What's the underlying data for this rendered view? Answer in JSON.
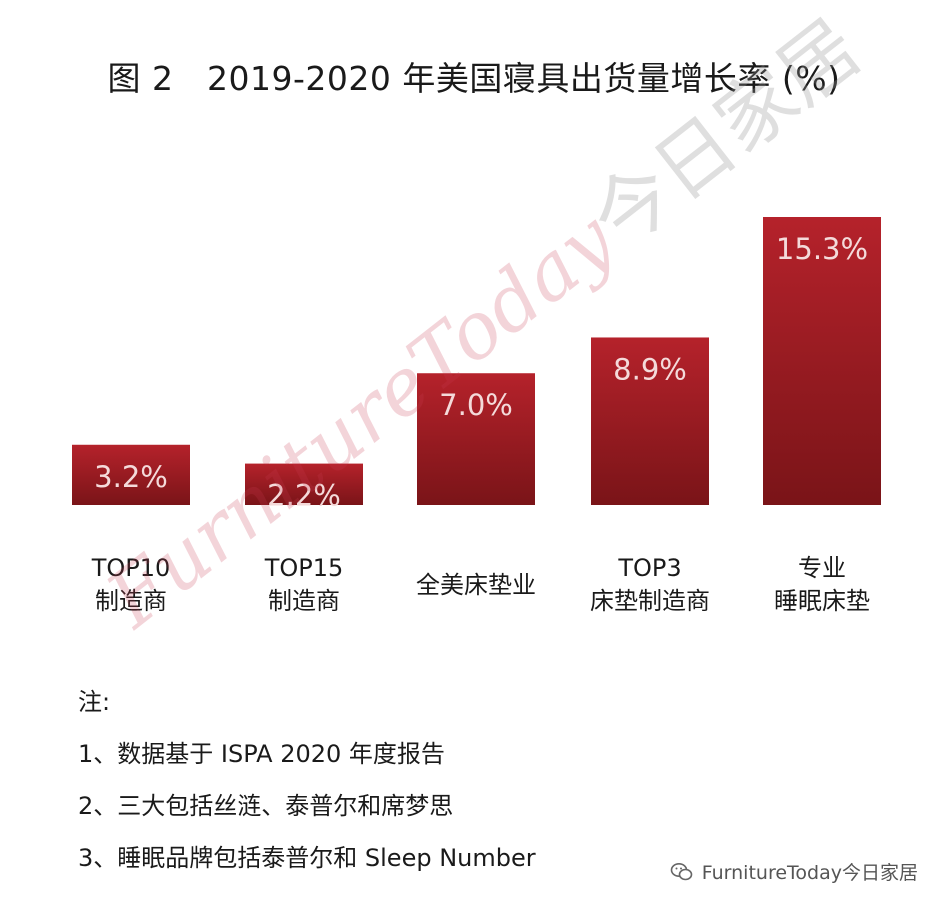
{
  "colors": {
    "bar_top": "#b5222b",
    "bar_bottom": "#7a1418",
    "bar_label": "#f4dada"
  },
  "chart_data": {
    "type": "bar",
    "title": "图 2　2019-2020 年美国寝具出货量增长率 (%)",
    "categories": [
      [
        "TOP10",
        "制造商"
      ],
      [
        "TOP15",
        "制造商"
      ],
      [
        "全美床垫业"
      ],
      [
        "TOP3",
        "床垫制造商"
      ],
      [
        "专业",
        "睡眠床垫"
      ]
    ],
    "values": [
      3.2,
      2.2,
      7.0,
      8.9,
      15.3
    ],
    "value_labels": [
      "3.2%",
      "2.2%",
      "7.0%",
      "8.9%",
      "15.3%"
    ],
    "ylim": [
      0,
      15.3
    ],
    "grid": false,
    "legend": "none"
  },
  "notes": {
    "heading": "注:",
    "items": [
      "1、数据基于 ISPA 2020 年度报告",
      "2、三大包括丝涟、泰普尔和席梦思",
      "3、睡眠品牌包括泰普尔和 Sleep Number"
    ]
  },
  "watermark": {
    "latin": "FurnitureToday",
    "cn": "今日家居"
  },
  "footer": {
    "icon": "wechat-icon",
    "text": "FurnitureToday今日家居"
  }
}
